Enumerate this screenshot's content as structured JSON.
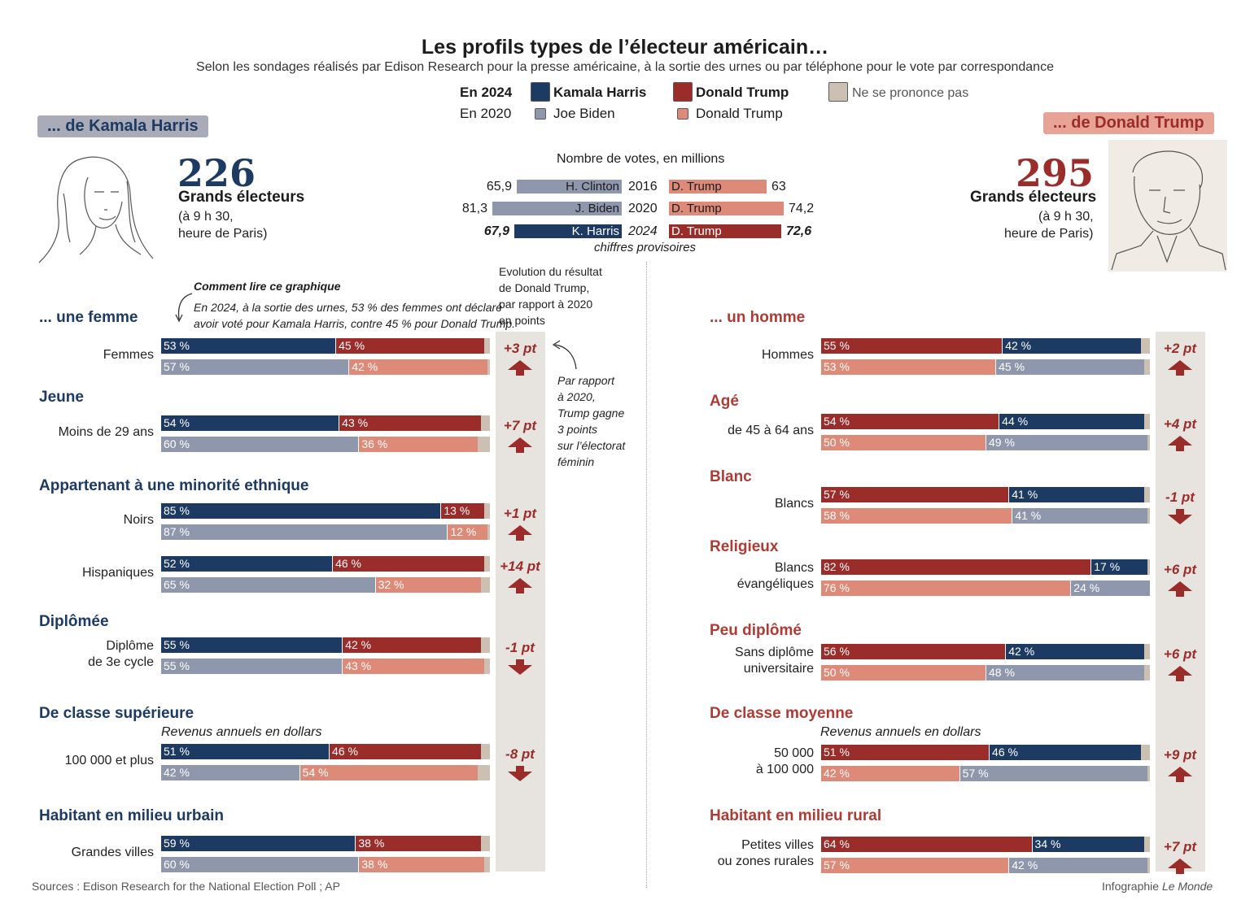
{
  "title": "Les profils types de l’électeur américain…",
  "subtitle": "Selon les sondages réalisés par Edison Research pour la presse américaine, à la sortie des urnes ou par téléphone pour le vote par correspondance",
  "colors": {
    "harris": "#1d3a62",
    "trump": "#9a2c2a",
    "biden": "#8f97ad",
    "trump2020": "#dd8a78",
    "undecided": "#cbc0b2",
    "band": "#e7e3df",
    "accent_red": "#b03a34",
    "accent_blue": "#1d3a62"
  },
  "legend": {
    "year_2024": "En 2024",
    "year_2020": "En 2020",
    "harris": "Kamala Harris",
    "trump_2024": "Donald Trump",
    "undecided": "Ne se prononce pas",
    "biden": "Joe Biden",
    "trump_2020": "Donald Trump"
  },
  "left_header": {
    "tag": "... de Kamala Harris",
    "electors": "226",
    "electors_label": "Grands électeurs",
    "time_line1": "(à 9 h 30,",
    "time_line2": "heure de Paris)"
  },
  "right_header": {
    "tag": "... de Donald Trump",
    "electors": "295",
    "electors_label": "Grands électeurs",
    "time_line1": "(à 9 h 30,",
    "time_line2": "heure de Paris)"
  },
  "votes": {
    "title": "Nombre de votes, en millions",
    "footnote": "chiffres provisoires",
    "rows": [
      {
        "year": "2016",
        "dem_name": "H. Clinton",
        "dem": 65.9,
        "dem_label": "65,9",
        "rep_name": "D. Trump",
        "rep": 63,
        "rep_label": "63"
      },
      {
        "year": "2020",
        "dem_name": "J. Biden",
        "dem": 81.3,
        "dem_label": "81,3",
        "rep_name": "D. Trump",
        "rep": 74.2,
        "rep_label": "74,2"
      },
      {
        "year": "2024",
        "dem_name": "K. Harris",
        "dem": 67.9,
        "dem_label": "67,9",
        "rep_name": "D. Trump",
        "rep": 72.6,
        "rep_label": "72,6"
      }
    ]
  },
  "how_to": {
    "title": "Comment lire ce graphique",
    "line1": "En 2024, à la sortie des urnes, 53 % des femmes ont déclaré",
    "line2": "avoir voté pour Kamala Harris, contre 45 % pour Donald Trump."
  },
  "evolution_label": {
    "line1": "Evolution du résultat",
    "line2": "de Donald Trump,",
    "line3": "par rapport à 2020",
    "line4": "en points"
  },
  "annotation": {
    "line1": "Par rapport",
    "line2": "à 2020,",
    "line3": "Trump gagne",
    "line4": "3 points",
    "line5": "sur l’électorat",
    "line6": "féminin"
  },
  "income_label": "Revenus annuels en dollars",
  "chart_data": [
    {
      "type": "bar",
      "panel": "Kamala Harris",
      "groups": [
        {
          "section": "... une femme",
          "label": "Femmes",
          "harris_2024": 53,
          "trump_2024": 45,
          "biden_2020": 57,
          "trump_2020": 42,
          "delta": "+3 pt",
          "direction": "up"
        },
        {
          "section": "Jeune",
          "label": "Moins de 29 ans",
          "harris_2024": 54,
          "trump_2024": 43,
          "biden_2020": 60,
          "trump_2020": 36,
          "delta": "+7 pt",
          "direction": "up"
        },
        {
          "section": "Appartenant à une minorité ethnique",
          "label": "Noirs",
          "harris_2024": 85,
          "trump_2024": 13,
          "biden_2020": 87,
          "trump_2020": 12,
          "delta": "+1 pt",
          "direction": "up"
        },
        {
          "section": "",
          "label": "Hispaniques",
          "harris_2024": 52,
          "trump_2024": 46,
          "biden_2020": 65,
          "trump_2020": 32,
          "delta": "+14 pt",
          "direction": "up"
        },
        {
          "section": "Diplômée",
          "label": "Diplôme de 3e cycle",
          "label_line1": "Diplôme",
          "label_line2": "de 3e cycle",
          "harris_2024": 55,
          "trump_2024": 42,
          "biden_2020": 55,
          "trump_2020": 43,
          "delta": "-1 pt",
          "direction": "down"
        },
        {
          "section": "De classe supérieure",
          "label": "100 000 et plus",
          "harris_2024": 51,
          "trump_2024": 46,
          "biden_2020": 42,
          "trump_2020": 54,
          "delta": "-8 pt",
          "direction": "down"
        },
        {
          "section": "Habitant en milieu urbain",
          "label": "Grandes villes",
          "harris_2024": 59,
          "trump_2024": 38,
          "biden_2020": 60,
          "trump_2020": 38,
          "delta": "",
          "direction": "none"
        }
      ]
    },
    {
      "type": "bar",
      "panel": "Donald Trump",
      "groups": [
        {
          "section": "... un homme",
          "label": "Hommes",
          "trump_2024": 55,
          "harris_2024": 42,
          "trump_2020": 53,
          "biden_2020": 45,
          "delta": "+2 pt",
          "direction": "up"
        },
        {
          "section": "Agé",
          "label": "de 45 à 64 ans",
          "trump_2024": 54,
          "harris_2024": 44,
          "trump_2020": 50,
          "biden_2020": 49,
          "delta": "+4 pt",
          "direction": "up"
        },
        {
          "section": "Blanc",
          "label": "Blancs",
          "trump_2024": 57,
          "harris_2024": 41,
          "trump_2020": 58,
          "biden_2020": 41,
          "delta": "-1 pt",
          "direction": "down"
        },
        {
          "section": "Religieux",
          "label": "Blancs évangéliques",
          "label_line1": "Blancs",
          "label_line2": "évangéliques",
          "trump_2024": 82,
          "harris_2024": 17,
          "trump_2020": 76,
          "biden_2020": 24,
          "delta": "+6 pt",
          "direction": "up"
        },
        {
          "section": "Peu diplômé",
          "label": "Sans diplôme universitaire",
          "label_line1": "Sans diplôme",
          "label_line2": "universitaire",
          "trump_2024": 56,
          "harris_2024": 42,
          "trump_2020": 50,
          "biden_2020": 48,
          "delta": "+6 pt",
          "direction": "up"
        },
        {
          "section": "De classe moyenne",
          "label": "50 000 à 100 000",
          "label_line1": "50 000",
          "label_line2": "à 100 000",
          "trump_2024": 51,
          "harris_2024": 46,
          "trump_2020": 42,
          "biden_2020": 57,
          "delta": "+9 pt",
          "direction": "up"
        },
        {
          "section": "Habitant en milieu rural",
          "label": "Petites villes ou zones rurales",
          "label_line1": "Petites villes",
          "label_line2": "ou zones rurales",
          "trump_2024": 64,
          "harris_2024": 34,
          "trump_2020": 57,
          "biden_2020": 42,
          "delta": "+7 pt",
          "direction": "up"
        }
      ]
    }
  ],
  "source": "Sources : Edison Research for the National Election Poll ; AP",
  "credit_prefix": "Infographie ",
  "credit_name": "Le Monde"
}
